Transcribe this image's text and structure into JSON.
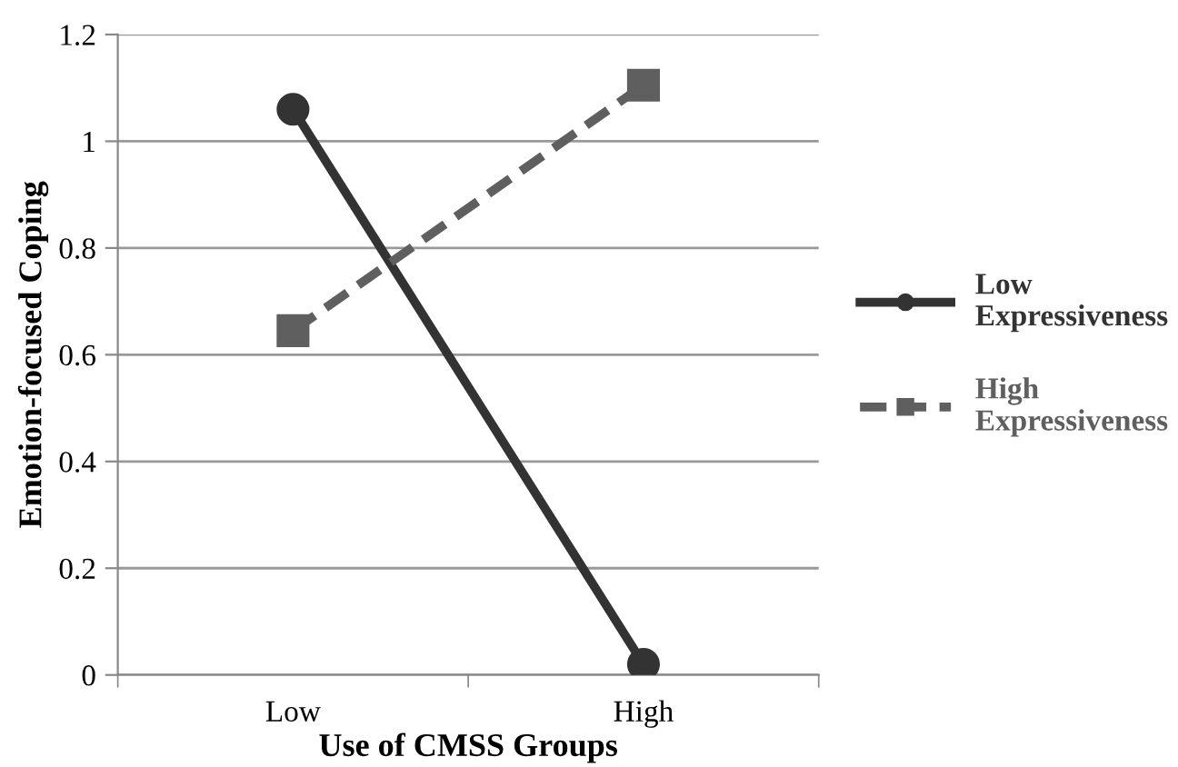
{
  "chart_data": {
    "type": "line",
    "xlabel": "Use of CMSS Groups",
    "ylabel": "Emotion-focused Coping",
    "categories": [
      "Low",
      "High"
    ],
    "series": [
      {
        "name": "Low\nExpressiveness",
        "color": "#333333",
        "values": [
          1.06,
          0.02
        ],
        "marker": "circle",
        "line_style": "solid"
      },
      {
        "name": "High\nExpressiveness",
        "color": "#5f5f5f",
        "values": [
          0.645,
          1.105
        ],
        "marker": "square",
        "line_style": "dashed"
      }
    ],
    "ylim": [
      0,
      1.2
    ],
    "yticks": [
      0,
      0.2,
      0.4,
      0.6,
      0.8,
      1,
      1.2
    ],
    "grid": "y",
    "legend": "right"
  }
}
